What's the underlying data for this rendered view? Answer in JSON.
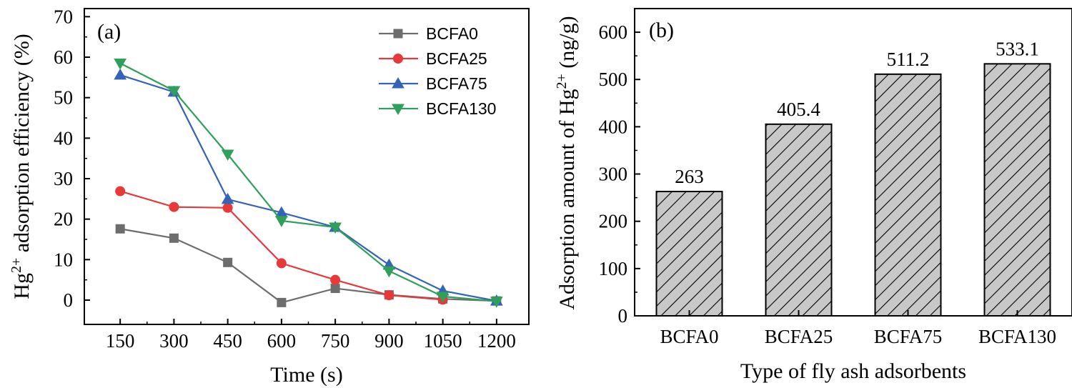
{
  "chart_data": [
    {
      "type": "line",
      "panel_label": "(a)",
      "xlabel": "Time (s)",
      "ylabel_main": "Hg",
      "ylabel_sup": "2+",
      "ylabel_rest": " adsorption efficiency (%)",
      "x": [
        150,
        300,
        450,
        600,
        750,
        900,
        1050,
        1200
      ],
      "xlim": [
        50,
        1290
      ],
      "ylim": [
        -6,
        72
      ],
      "yticks": [
        0,
        10,
        20,
        30,
        40,
        50,
        60,
        70
      ],
      "legend_position": "top-right",
      "series": [
        {
          "name": "BCFA0",
          "color": "#6d6d6d",
          "marker": "square",
          "values": [
            17.6,
            15.3,
            9.3,
            -0.6,
            2.9,
            1.3,
            0.3,
            -0.2
          ]
        },
        {
          "name": "BCFA25",
          "color": "#e8393a",
          "marker": "circle",
          "values": [
            26.9,
            23.0,
            22.8,
            9.1,
            5.0,
            1.2,
            0.1,
            null
          ]
        },
        {
          "name": "BCFA75",
          "color": "#3463b8",
          "marker": "triangle-up",
          "values": [
            55.6,
            51.4,
            24.9,
            21.6,
            18.0,
            8.7,
            2.3,
            -0.2
          ]
        },
        {
          "name": "BCFA130",
          "color": "#2fa05a",
          "marker": "triangle-down",
          "values": [
            58.5,
            51.7,
            36.0,
            19.6,
            18.0,
            7.2,
            0.9,
            -0.3
          ]
        }
      ]
    },
    {
      "type": "bar",
      "panel_label": "(b)",
      "xlabel": "Type of fly ash adsorbents",
      "ylabel_main": "Adsorption amount of Hg",
      "ylabel_sup": "2+",
      "ylabel_rest": " (ng/g)",
      "categories": [
        "BCFA0",
        "BCFA25",
        "BCFA75",
        "BCFA130"
      ],
      "values": [
        263,
        405.4,
        511.2,
        533.1
      ],
      "value_labels": [
        "263",
        "405.4",
        "511.2",
        "533.1"
      ],
      "ylim": [
        0,
        650
      ],
      "yticks": [
        0,
        100,
        200,
        300,
        400,
        500,
        600
      ],
      "bar_fill": "#c8c8c8",
      "bar_hatch": "diagonal"
    }
  ]
}
